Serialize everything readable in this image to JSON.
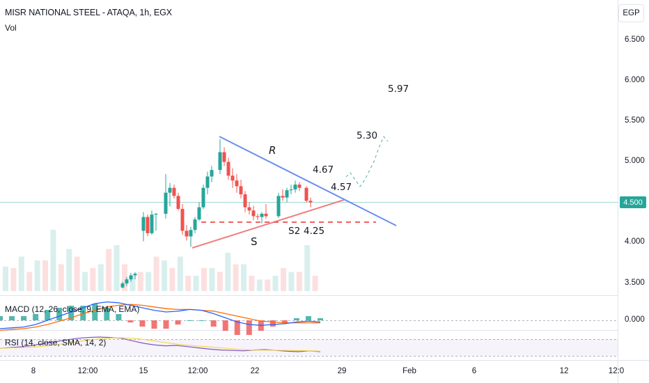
{
  "header": {
    "title": "MISR NATIONAL STEEL - ATAQA, 1h, EGX",
    "volume_label": "Vol",
    "currency_button": "EGP"
  },
  "indicators": {
    "macd_label": "MACD (12, 26, close, 9, EMA, EMA)",
    "rsi_label": "RSI (14, close, SMA, 14, 2)"
  },
  "price_axis": {
    "ticks": [
      "6.500",
      "6.000",
      "5.500",
      "5.000",
      "4.000",
      "3.500"
    ],
    "current_price": "4.500",
    "macd_zero": "0.000"
  },
  "time_axis": {
    "ticks": [
      "8",
      "12:00",
      "15",
      "12:00",
      "22",
      "29",
      "Feb",
      "6",
      "12",
      "12:0"
    ]
  },
  "annotations": {
    "resistance": "R",
    "support": "S",
    "s2": "S2",
    "s2_value": "4.25",
    "level_1": "4.57",
    "level_2": "4.67",
    "level_3": "5.30",
    "level_4": "5.97"
  },
  "colors": {
    "up": "#26a69a",
    "down": "#ef5350",
    "resistance_line": "#5b8def",
    "support_line": "#f08080",
    "macd_line": "#2962ff",
    "signal_line": "#ff6d00",
    "rsi_line": "#7e57c2"
  },
  "chart_data": {
    "type": "candlestick",
    "symbol": "ATAQA",
    "interval": "1h",
    "ylim": [
      3.3,
      6.75
    ],
    "candles": [
      [
        3.45,
        3.52,
        3.44,
        3.5
      ],
      [
        3.5,
        3.58,
        3.47,
        3.55
      ],
      [
        3.55,
        3.63,
        3.52,
        3.6
      ],
      [
        3.6,
        3.64,
        3.55,
        3.62
      ],
      [
        4.15,
        4.38,
        4.02,
        4.32
      ],
      [
        4.32,
        4.35,
        4.08,
        4.12
      ],
      [
        4.12,
        4.4,
        4.1,
        4.35
      ],
      [
        4.35,
        4.37,
        4.15,
        4.36
      ],
      [
        4.36,
        4.85,
        4.3,
        4.62
      ],
      [
        4.62,
        4.74,
        4.45,
        4.68
      ],
      [
        4.68,
        4.72,
        4.55,
        4.58
      ],
      [
        4.58,
        4.62,
        4.4,
        4.42
      ],
      [
        4.42,
        4.48,
        4.1,
        4.15
      ],
      [
        4.15,
        4.22,
        4.03,
        4.08
      ],
      [
        4.08,
        4.2,
        3.95,
        4.16
      ],
      [
        4.16,
        4.32,
        4.12,
        4.29
      ],
      [
        4.29,
        4.5,
        4.27,
        4.44
      ],
      [
        4.44,
        4.72,
        4.42,
        4.68
      ],
      [
        4.68,
        4.88,
        4.6,
        4.82
      ],
      [
        4.82,
        4.95,
        4.75,
        4.9
      ],
      [
        4.9,
        5.28,
        4.85,
        5.12
      ],
      [
        5.12,
        5.18,
        4.95,
        5.0
      ],
      [
        5.0,
        5.05,
        4.78,
        4.83
      ],
      [
        4.83,
        4.92,
        4.68,
        4.77
      ],
      [
        4.77,
        4.85,
        4.62,
        4.7
      ],
      [
        4.7,
        4.78,
        4.55,
        4.6
      ],
      [
        4.6,
        4.64,
        4.38,
        4.44
      ],
      [
        4.44,
        4.5,
        4.35,
        4.4
      ],
      [
        4.4,
        4.46,
        4.28,
        4.33
      ],
      [
        4.33,
        4.36,
        4.28,
        4.32
      ],
      [
        4.32,
        4.38,
        4.24,
        4.36
      ],
      [
        4.36,
        4.48,
        4.3,
        4.33
      ],
      [
        4.33,
        4.62,
        4.31,
        4.58
      ],
      [
        4.58,
        4.66,
        4.52,
        4.56
      ],
      [
        4.56,
        4.68,
        4.5,
        4.65
      ],
      [
        4.65,
        4.72,
        4.6,
        4.66
      ],
      [
        4.66,
        4.77,
        4.62,
        4.72
      ],
      [
        4.72,
        4.75,
        4.64,
        4.68
      ],
      [
        4.68,
        4.7,
        4.5,
        4.52
      ],
      [
        4.52,
        4.56,
        4.44,
        4.5
      ]
    ],
    "volume_up": [
      0.32,
      0.45,
      0.4,
      0.8,
      0.55,
      0.25,
      0.35,
      0.6,
      0.2,
      0.25,
      0.4,
      0.45,
      0.2,
      0.3,
      0.5,
      0.35,
      0.15,
      0.2,
      0.25,
      0.6
    ],
    "volume_down": [
      0.3,
      0.25,
      0.4,
      0.35,
      0.45,
      0.3,
      0.55,
      0.35,
      0.25,
      0.45,
      0.3,
      0.2,
      0.3,
      0.25,
      0.35,
      0.2,
      0.15,
      0.3,
      0.25,
      0.2
    ],
    "macd": [
      -0.1,
      -0.09,
      -0.08,
      -0.05,
      0.0,
      0.05,
      0.1,
      0.15,
      0.2,
      0.22,
      0.21,
      0.18,
      0.15,
      0.12,
      0.1,
      0.11,
      0.13,
      0.12,
      0.08,
      0.03,
      -0.02,
      -0.05,
      -0.06,
      -0.05,
      -0.04,
      -0.02,
      -0.01,
      -0.02
    ],
    "signal": [
      -0.12,
      -0.11,
      -0.1,
      -0.08,
      -0.05,
      -0.01,
      0.03,
      0.08,
      0.12,
      0.16,
      0.18,
      0.19,
      0.18,
      0.16,
      0.14,
      0.13,
      0.13,
      0.12,
      0.11,
      0.08,
      0.05,
      0.02,
      -0.01,
      -0.02,
      -0.03,
      -0.03,
      -0.03,
      -0.03
    ],
    "rsi": [
      48,
      50,
      52,
      55,
      60,
      64,
      68,
      72,
      74,
      75,
      74,
      72,
      66,
      60,
      56,
      54,
      55,
      52,
      49,
      46,
      44,
      43,
      42,
      44,
      45,
      43,
      41,
      40,
      42,
      40
    ]
  }
}
